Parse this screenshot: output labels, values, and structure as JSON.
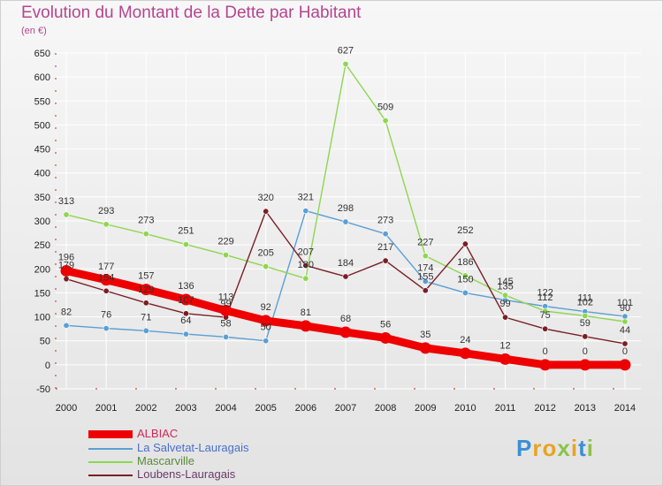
{
  "chart_data": {
    "type": "line",
    "title": "Evolution du Montant de la Dette par Habitant",
    "subtitle": "(en €)",
    "categories": [
      "2000",
      "2001",
      "2002",
      "2003",
      "2004",
      "2005",
      "2006",
      "2007",
      "2008",
      "2009",
      "2010",
      "2011",
      "2012",
      "2013",
      "2014"
    ],
    "ylim": [
      -50,
      650
    ],
    "yticks": [
      "-50",
      "0",
      "50",
      "100",
      "150",
      "200",
      "250",
      "300",
      "350",
      "400",
      "450",
      "500",
      "550",
      "600",
      "650"
    ],
    "grid": true,
    "legend_position": "bottom-left",
    "series": [
      {
        "name": "ALBIAC",
        "color": "#ee0000",
        "values": [
          196,
          177,
          157,
          136,
          113,
          92,
          81,
          68,
          56,
          35,
          24,
          12,
          0,
          0,
          0
        ],
        "labels": [
          "196",
          "177",
          "157",
          "136",
          "113",
          "92",
          "81",
          "68",
          "56",
          "35",
          "24",
          "12",
          "0",
          "0",
          "0"
        ]
      },
      {
        "name": "La Salvetat-Lauragais",
        "color": "#5b9fd4",
        "values": [
          82,
          76,
          71,
          64,
          58,
          50,
          321,
          298,
          273,
          174,
          150,
          135,
          122,
          111,
          101
        ],
        "labels": [
          "82",
          "76",
          "71",
          "64",
          "58",
          "50",
          "321",
          "298",
          "273",
          "174",
          "150",
          "135",
          "122",
          "111",
          "101"
        ]
      },
      {
        "name": "Mascarville",
        "color": "#8fd650",
        "values": [
          313,
          293,
          273,
          251,
          229,
          205,
          180,
          627,
          509,
          227,
          186,
          145,
          112,
          102,
          90
        ],
        "labels": [
          "313",
          "293",
          "273",
          "251",
          "229",
          "205",
          "180",
          "627",
          "509",
          "227",
          "186",
          "145",
          "112",
          "102",
          "90"
        ]
      },
      {
        "name": "Loubens-Lauragais",
        "color": "#7a1e25",
        "values": [
          179,
          154,
          129,
          107,
          99,
          320,
          207,
          184,
          217,
          155,
          252,
          99,
          75,
          59,
          44
        ],
        "labels": [
          "179",
          "154",
          "129",
          "107",
          "99",
          "320",
          "207",
          "184",
          "217",
          "155",
          "252",
          "99",
          "75",
          "59",
          "44"
        ]
      }
    ]
  },
  "logo": {
    "text": "Proxiti",
    "letters": [
      "P",
      "r",
      "o",
      "x",
      "i",
      "t",
      "i"
    ],
    "colors": [
      "#3a8fd8",
      "#e8a325",
      "#e8a325",
      "#8bc34a",
      "#e8a325",
      "#3a8fd8",
      "#8bc34a"
    ]
  }
}
